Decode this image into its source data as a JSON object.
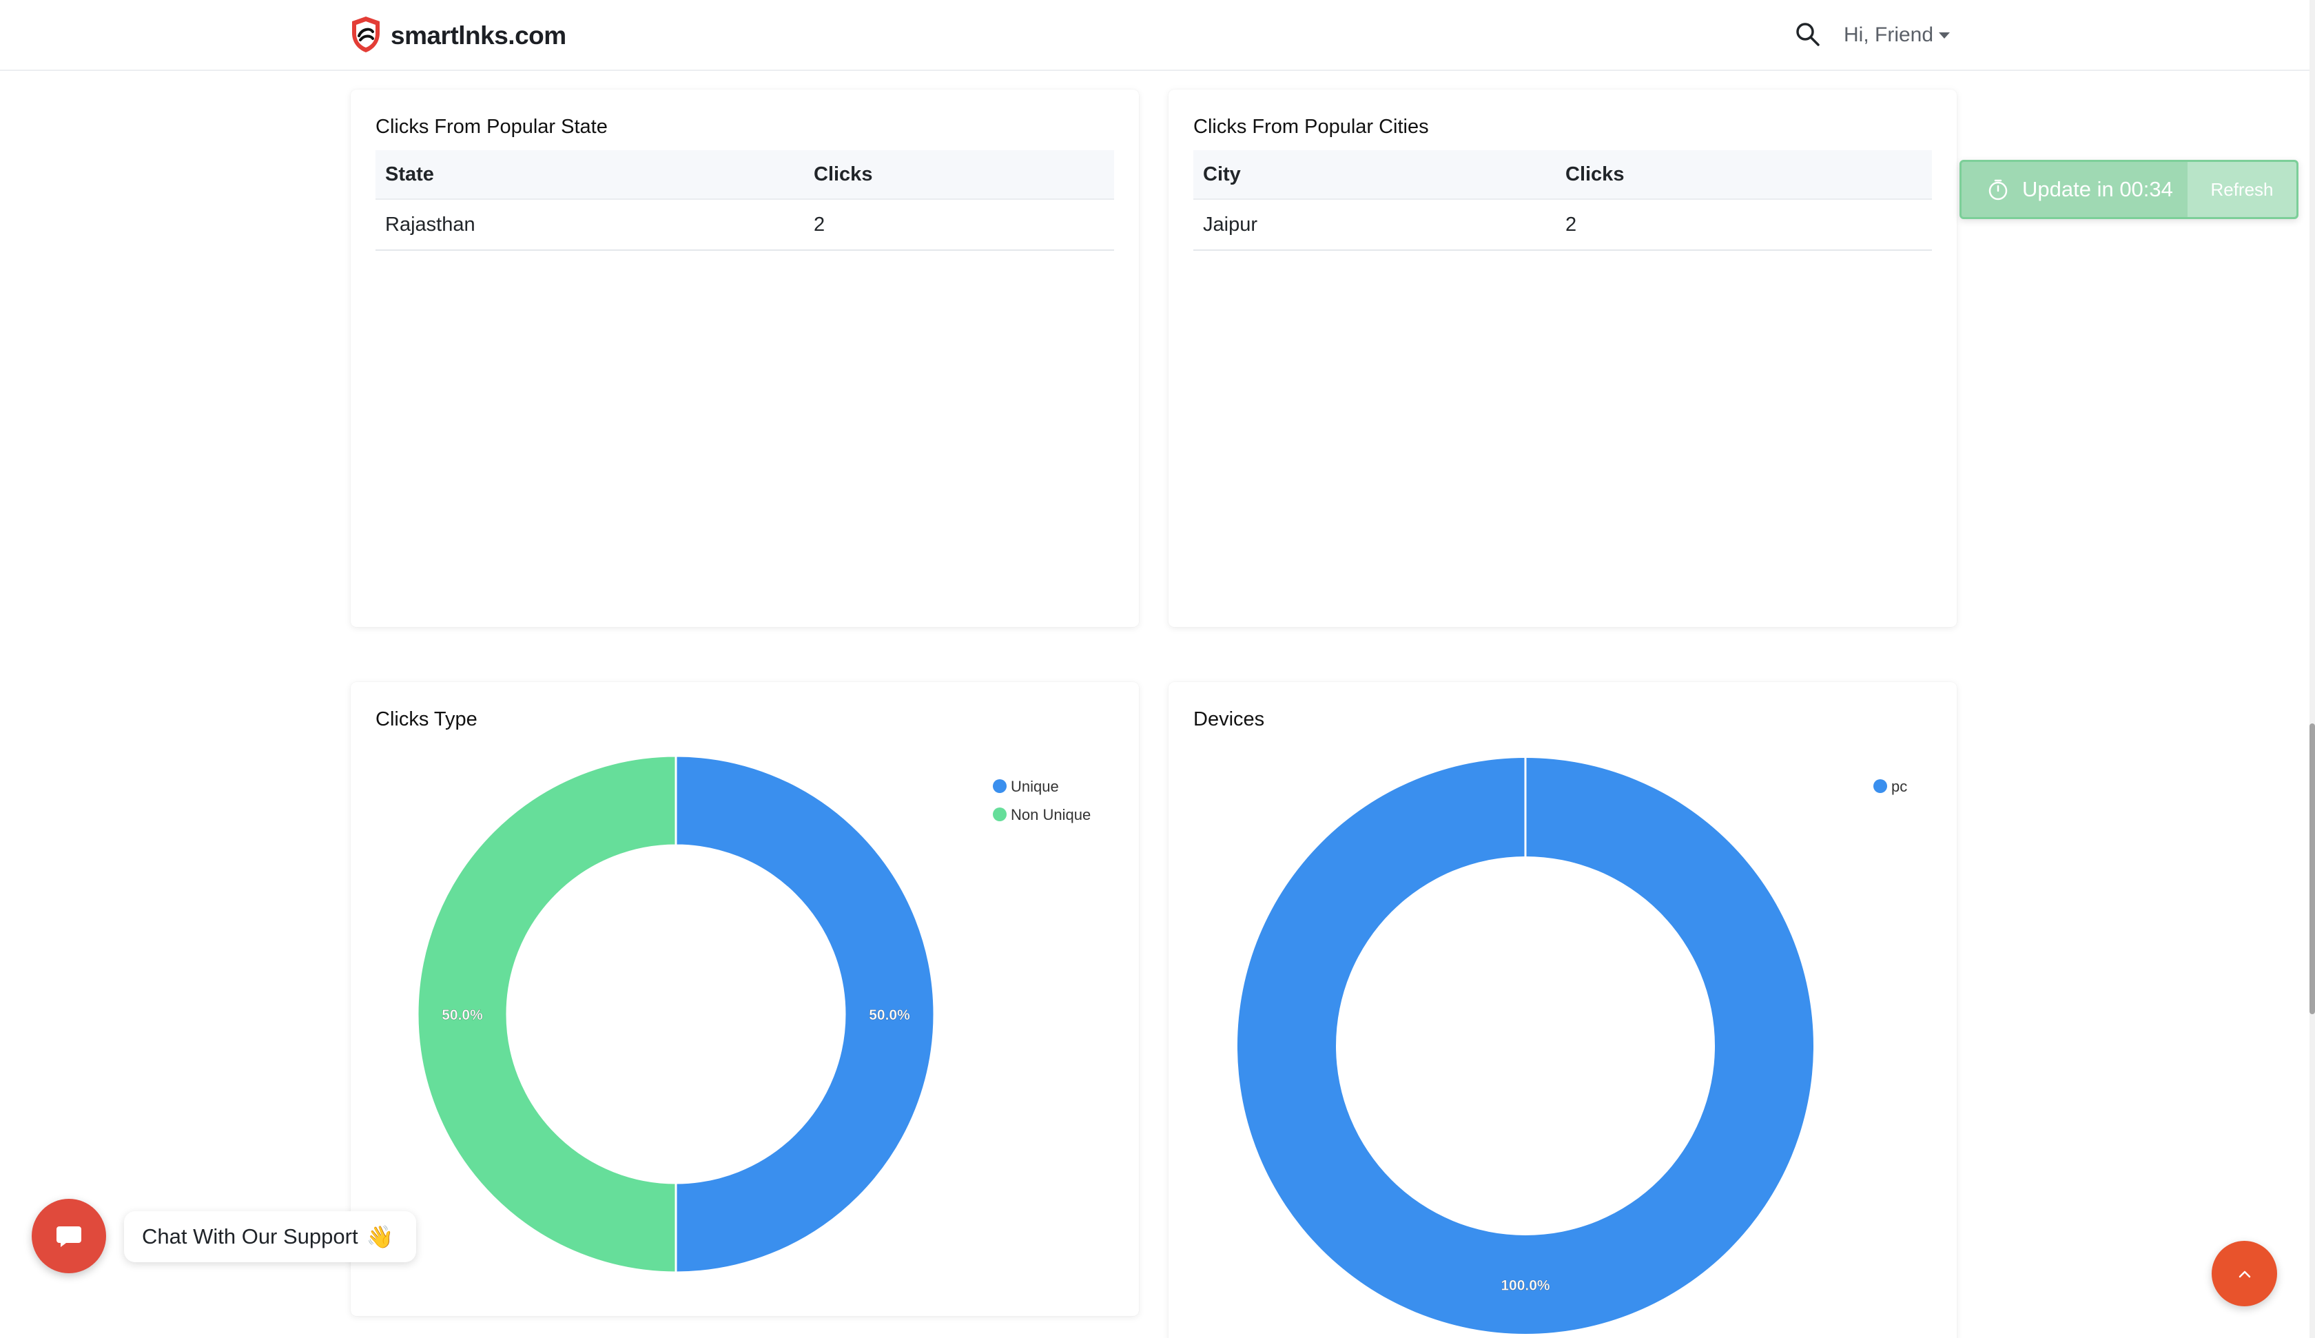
{
  "header": {
    "brand_name": "smartlnks.com",
    "user_greeting": "Hi, Friend"
  },
  "state_card": {
    "title": "Clicks From Popular State",
    "columns": [
      "State",
      "Clicks"
    ],
    "rows": [
      [
        "Rajasthan",
        "2"
      ]
    ]
  },
  "city_card": {
    "title": "Clicks From Popular Cities",
    "columns": [
      "City",
      "Clicks"
    ],
    "rows": [
      [
        "Jaipur",
        "2"
      ]
    ]
  },
  "update_toast": {
    "text": "Update in 00:34",
    "refresh_label": "Refresh",
    "accent": "#9fd9b3"
  },
  "chat": {
    "label": "Chat With Our Support",
    "emoji": "👋"
  },
  "icons": [
    "shield-logo-icon",
    "search-icon",
    "chevron-down-icon",
    "timer-icon",
    "chat-bubble-icon",
    "chevron-up-icon"
  ],
  "colors": {
    "unique": "#3a8fee",
    "non_unique": "#66de9a",
    "pc": "#3a8fee",
    "chat_button": "#e04a3c",
    "scroll_top_button": "#e8532c"
  },
  "chart_data": [
    {
      "type": "pie",
      "title": "Clicks Type",
      "donut": true,
      "legend_position": "top-right",
      "series": [
        {
          "name": "Unique",
          "value": 50.0,
          "label": "50.0%"
        },
        {
          "name": "Non Unique",
          "value": 50.0,
          "label": "50.0%"
        }
      ]
    },
    {
      "type": "pie",
      "title": "Devices",
      "donut": true,
      "legend_position": "top-right",
      "series": [
        {
          "name": "pc",
          "value": 100.0,
          "label": "100.0%"
        }
      ]
    }
  ]
}
